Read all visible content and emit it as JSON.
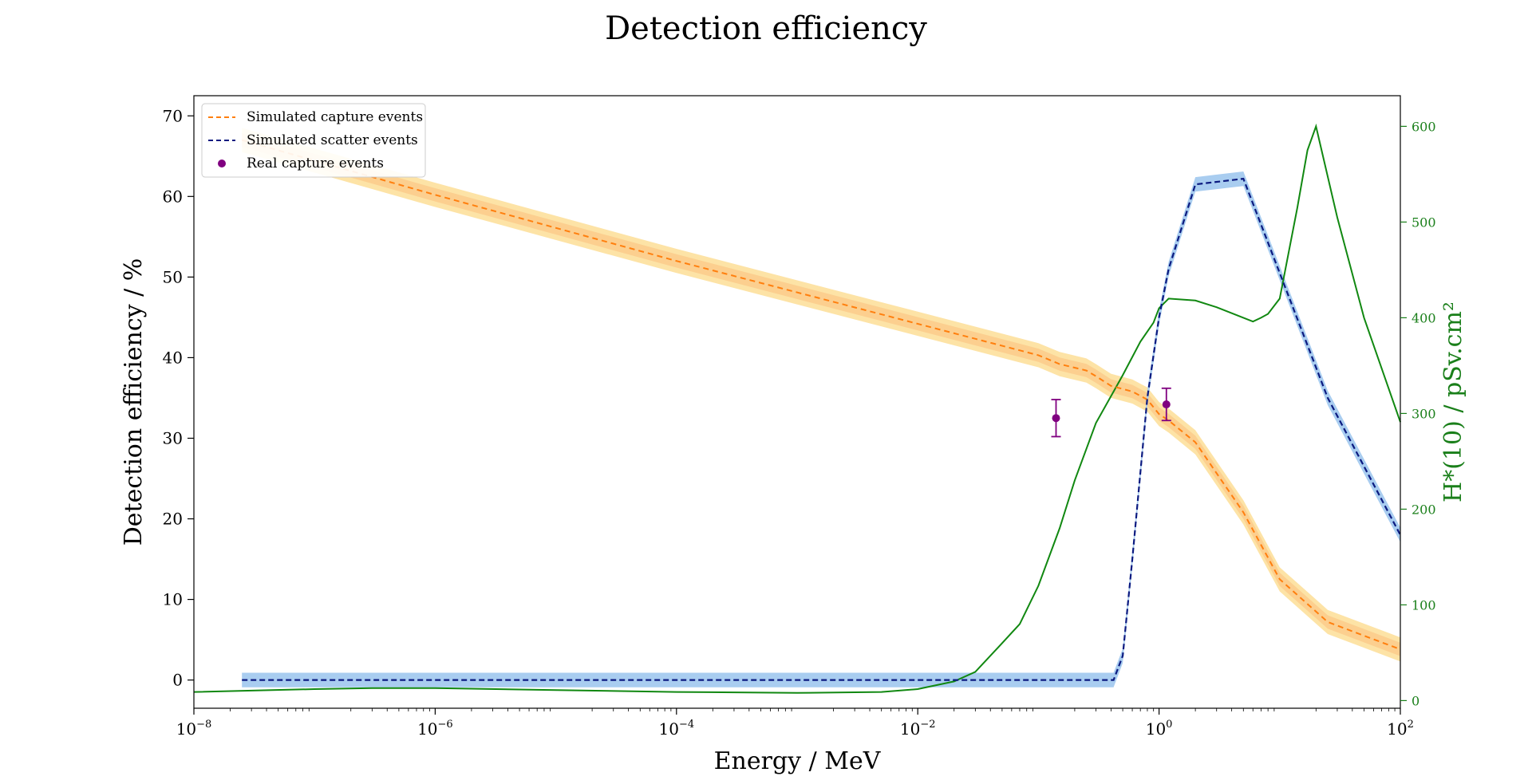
{
  "chart_data": {
    "type": "line",
    "title": "Detection efficiency",
    "xlabel": "Energy / MeV",
    "ylabel": "Detection efficiency / %",
    "y2label": "H*(10) / pSv.cm²",
    "xscale": "log",
    "xlim": [
      1e-08,
      100
    ],
    "ylim": [
      -3.5,
      72.5
    ],
    "y2lim": [
      -8,
      632
    ],
    "x_ticks": [
      {
        "value": 1e-08,
        "base": "10",
        "exp": "−8"
      },
      {
        "value": 1e-06,
        "base": "10",
        "exp": "−6"
      },
      {
        "value": 0.0001,
        "base": "10",
        "exp": "−4"
      },
      {
        "value": 0.01,
        "base": "10",
        "exp": "−2"
      },
      {
        "value": 1,
        "base": "10",
        "exp": "0"
      },
      {
        "value": 100,
        "base": "10",
        "exp": "2"
      }
    ],
    "y_ticks": [
      0,
      10,
      20,
      30,
      40,
      50,
      60,
      70
    ],
    "y2_ticks": [
      0,
      100,
      200,
      300,
      400,
      500,
      600
    ],
    "legend_position": "top-left",
    "grid": false,
    "colors": {
      "capture": "#ff7f0e",
      "capture_band_outer": "#fde3a6",
      "capture_band_inner": "#fbc98a",
      "scatter": "#0b1a80",
      "scatter_band": "#a9cdf0",
      "real": "#800080",
      "hstar": "#118811",
      "hstar_axis": "#1a7f1a"
    },
    "series": [
      {
        "name": "Simulated capture events",
        "style": "dashed",
        "band_half_width": 1.5,
        "x": [
          2.5e-08,
          1e-06,
          0.0001,
          0.01,
          0.1,
          0.15,
          0.25,
          0.3,
          0.4,
          0.6,
          0.8,
          1.0,
          1.2,
          2.0,
          5.0,
          10,
          25,
          100
        ],
        "y": [
          67,
          60.2,
          52.0,
          44.2,
          40.3,
          39.2,
          38.4,
          37.7,
          36.5,
          35.8,
          34.8,
          33.0,
          32.2,
          29.5,
          20.8,
          12.5,
          7.2,
          3.8
        ]
      },
      {
        "name": "Simulated scatter events",
        "style": "dashed",
        "band_half_width": 0.9,
        "x": [
          2.5e-08,
          1e-06,
          0.0001,
          0.01,
          0.35,
          0.42,
          0.5,
          0.6,
          0.8,
          1.0,
          1.2,
          2.0,
          5.0,
          10,
          25,
          100
        ],
        "y": [
          0,
          0,
          0,
          0,
          0,
          0,
          3,
          15,
          35,
          45,
          51,
          61.5,
          62.2,
          50.5,
          35,
          18
        ]
      },
      {
        "name": "Real capture events",
        "style": "points",
        "x": [
          0.14,
          1.15
        ],
        "y": [
          32.5,
          34.2
        ],
        "yerr": [
          2.3,
          2.0
        ]
      },
      {
        "name": "H*(10)",
        "style": "solid",
        "axis": "right",
        "x": [
          1e-08,
          1e-07,
          3e-07,
          1e-06,
          1e-05,
          0.0001,
          0.001,
          0.005,
          0.01,
          0.02,
          0.03,
          0.05,
          0.07,
          0.1,
          0.15,
          0.2,
          0.3,
          0.5,
          0.7,
          0.9,
          1.0,
          1.2,
          2.0,
          3.0,
          5.0,
          6.0,
          7.0,
          8.0,
          10,
          14,
          17,
          20,
          30,
          50,
          100
        ],
        "y": [
          9,
          12,
          13,
          13,
          11,
          9,
          8,
          9,
          12,
          20,
          30,
          60,
          80,
          120,
          180,
          230,
          290,
          340,
          375,
          395,
          410,
          420,
          418,
          411,
          400,
          396,
          400,
          404,
          420,
          515,
          575,
          600,
          505,
          400,
          291
        ]
      }
    ]
  }
}
